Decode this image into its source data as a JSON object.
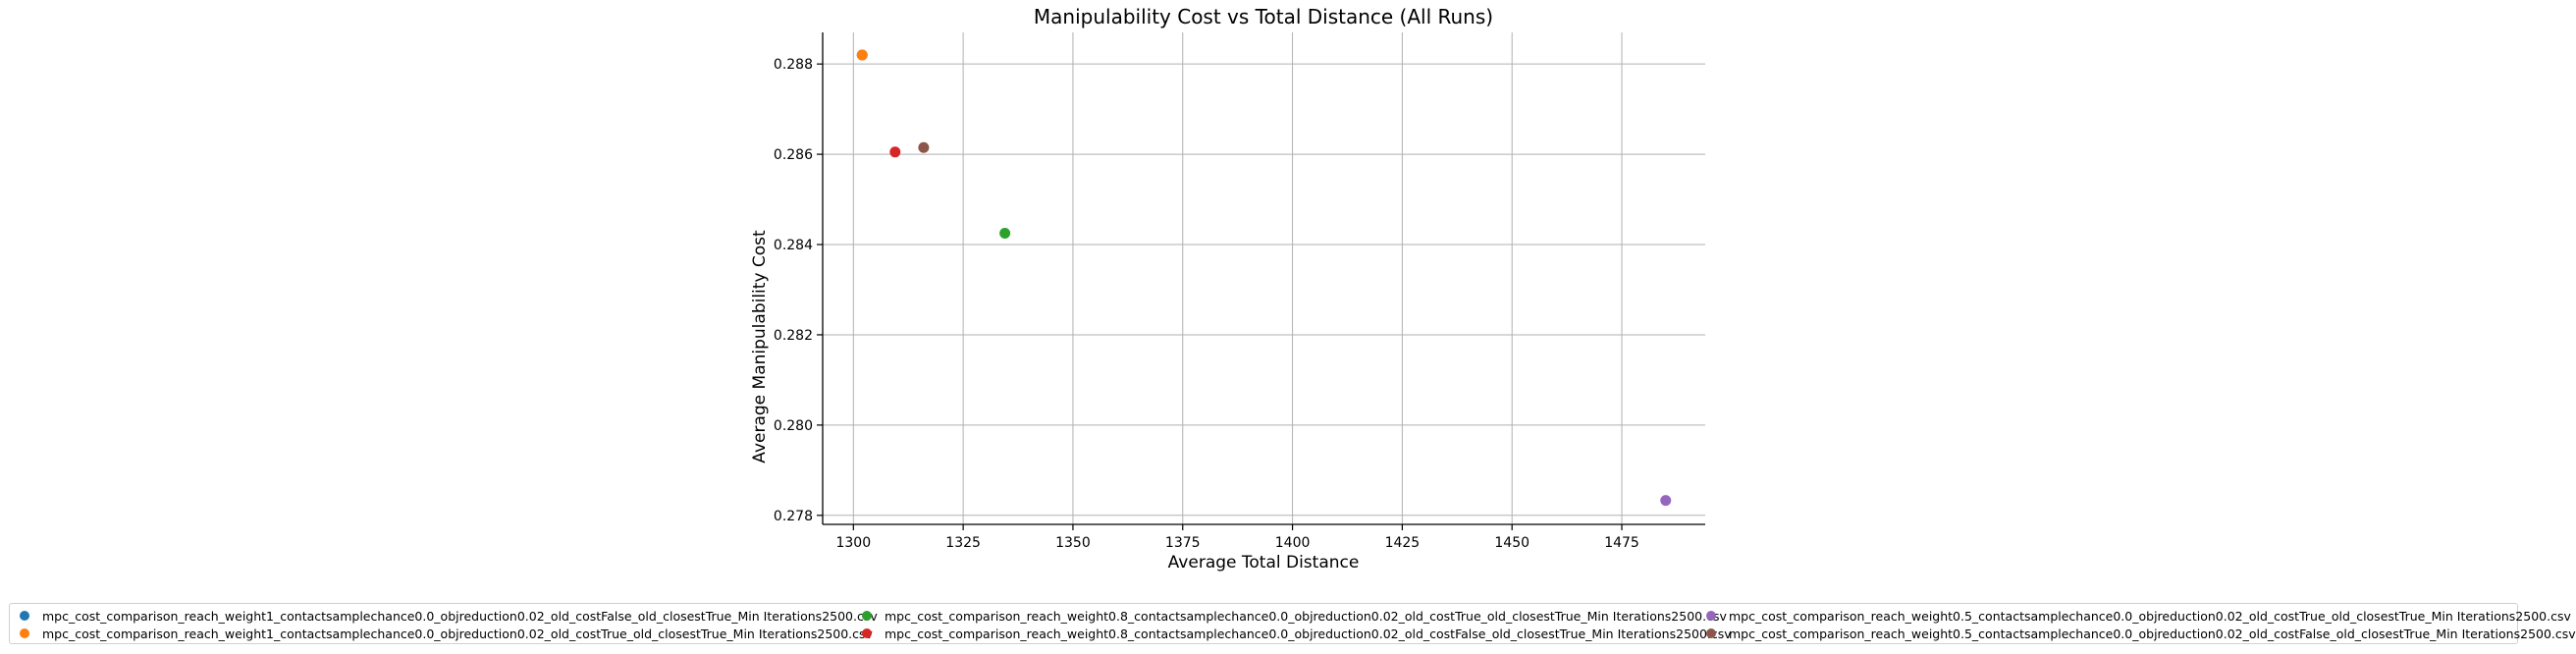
{
  "chart_data": {
    "type": "scatter",
    "title": "Manipulability Cost vs Total Distance (All Runs)",
    "xlabel": "Average Total Distance",
    "ylabel": "Average Manipulability Cost",
    "xlim": [
      1293,
      1494
    ],
    "ylim": [
      0.2778,
      0.2887
    ],
    "xticks": [
      1300,
      1325,
      1350,
      1375,
      1400,
      1425,
      1450,
      1475
    ],
    "xtick_labels": [
      "1300",
      "1325",
      "1350",
      "1375",
      "1400",
      "1425",
      "1450",
      "1475"
    ],
    "yticks": [
      0.278,
      0.28,
      0.282,
      0.284,
      0.286,
      0.288
    ],
    "ytick_labels": [
      "0.278",
      "0.280",
      "0.282",
      "0.284",
      "0.286",
      "0.288"
    ],
    "grid": true,
    "legend_position": "bottom",
    "series": [
      {
        "name": "mpc_cost_comparison_reach_weight1_contactsamplechance0.0_objreduction0.02_old_costFalse_old_closestTrue_Min Iterations2500.csv",
        "color": "#1f77b4",
        "points": [
          [
            1302,
            0.2882
          ]
        ]
      },
      {
        "name": "mpc_cost_comparison_reach_weight1_contactsamplechance0.0_objreduction0.02_old_costTrue_old_closestTrue_Min Iterations2500.csv",
        "color": "#ff7f0e",
        "points": [
          [
            1302,
            0.2882
          ]
        ]
      },
      {
        "name": "mpc_cost_comparison_reach_weight0.8_contactsamplechance0.0_objreduction0.02_old_costTrue_old_closestTrue_Min Iterations2500.csv",
        "color": "#2ca02c",
        "points": [
          [
            1334.5,
            0.28425
          ]
        ]
      },
      {
        "name": "mpc_cost_comparison_reach_weight0.8_contactsamplechance0.0_objreduction0.02_old_costFalse_old_closestTrue_Min Iterations2500.csv",
        "color": "#d62728",
        "points": [
          [
            1309.5,
            0.28605
          ]
        ]
      },
      {
        "name": "mpc_cost_comparison_reach_weight0.5_contactsamplechance0.0_objreduction0.02_old_costTrue_old_closestTrue_Min Iterations2500.csv",
        "color": "#9467bd",
        "points": [
          [
            1485,
            0.27833
          ]
        ]
      },
      {
        "name": "mpc_cost_comparison_reach_weight0.5_contactsamplechance0.0_objreduction0.02_old_costFalse_old_closestTrue_Min Iterations2500.csv",
        "color": "#8c564b",
        "points": [
          [
            1316,
            0.28615
          ]
        ]
      }
    ]
  }
}
